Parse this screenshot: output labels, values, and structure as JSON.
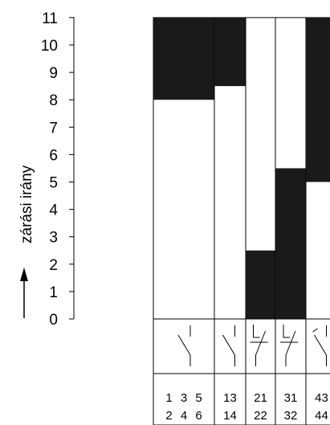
{
  "axis": {
    "title": "zárási irány",
    "ticks": [
      "0",
      "1",
      "2",
      "3",
      "4",
      "5",
      "6",
      "7",
      "8",
      "9",
      "10",
      "11"
    ]
  },
  "contacts": [
    {
      "id": "main",
      "symbol": "no-triple",
      "terminals_top": "1 3 5",
      "terminals_bottom": "2 4 6",
      "closed_from": 8,
      "closed_to": 11
    },
    {
      "id": "13-14",
      "symbol": "no",
      "terminals_top": "13",
      "terminals_bottom": "14",
      "closed_from": 8.5,
      "closed_to": 11
    },
    {
      "id": "21-22",
      "symbol": "nc-delayed",
      "terminals_top": "21",
      "terminals_bottom": "22",
      "closed_from": 0,
      "closed_to": 2.5
    },
    {
      "id": "31-32",
      "symbol": "nc-delayed",
      "terminals_top": "31",
      "terminals_bottom": "32",
      "closed_from": 0,
      "closed_to": 5.5
    },
    {
      "id": "43-44",
      "symbol": "no-early",
      "terminals_top": "43",
      "terminals_bottom": "44",
      "closed_from": 5,
      "closed_to": 11
    }
  ],
  "colors": {
    "fill": "#1a1a1a",
    "line": "#000000"
  }
}
